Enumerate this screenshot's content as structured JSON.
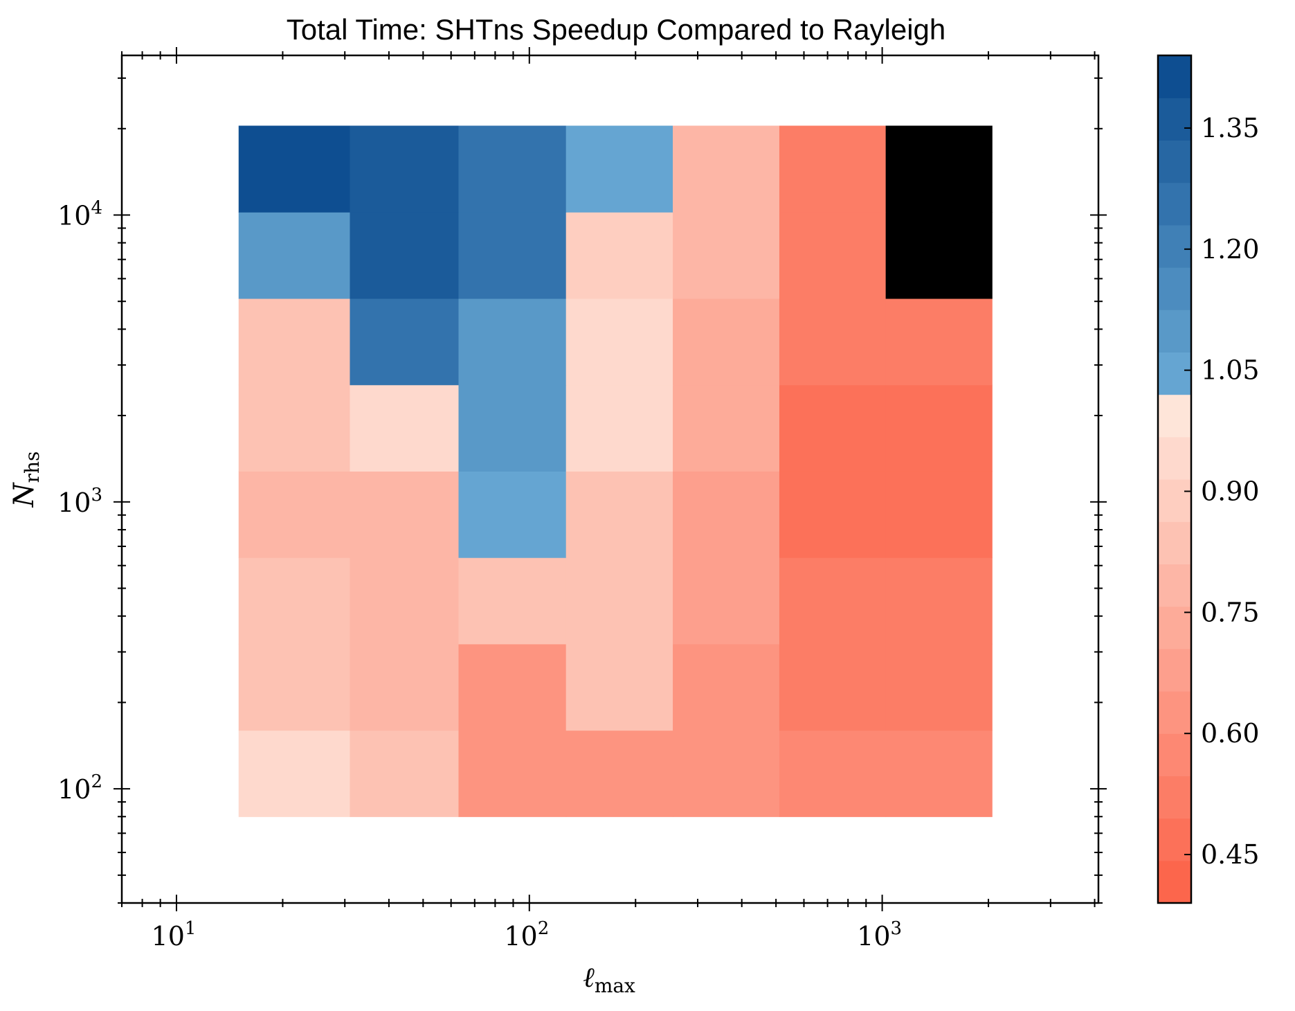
{
  "chart_data": {
    "type": "heatmap",
    "title": "Total Time: SHTns Speedup Compared to Rayleigh",
    "xlabel": {
      "main": "ℓ",
      "sub": "max"
    },
    "ylabel": {
      "main": "N",
      "sub": "rhs"
    },
    "x_scale": "log",
    "y_scale": "log",
    "xlim": [
      7,
      4100
    ],
    "ylim": [
      40,
      36000
    ],
    "x_ticks": [
      {
        "base": "10",
        "exp": "1",
        "value": 10
      },
      {
        "base": "10",
        "exp": "2",
        "value": 100
      },
      {
        "base": "10",
        "exp": "3",
        "value": 1000
      }
    ],
    "y_ticks": [
      {
        "base": "10",
        "exp": "2",
        "value": 100
      },
      {
        "base": "10",
        "exp": "3",
        "value": 1000
      },
      {
        "base": "10",
        "exp": "4",
        "value": 10000
      }
    ],
    "x_edges": [
      15,
      31,
      63,
      127,
      255,
      511,
      1023,
      2047
    ],
    "y_edges": [
      80,
      160,
      320,
      640,
      1280,
      2560,
      5120,
      10240,
      20480
    ],
    "grid": false,
    "values": [
      [
        0.94,
        0.82,
        0.62,
        0.62,
        0.62,
        0.58,
        0.56
      ],
      [
        0.86,
        0.78,
        0.62,
        0.82,
        0.64,
        0.54,
        0.5
      ],
      [
        0.86,
        0.78,
        0.82,
        0.82,
        0.7,
        0.54,
        0.5
      ],
      [
        0.8,
        0.76,
        1.03,
        0.82,
        0.7,
        0.48,
        0.48
      ],
      [
        0.86,
        0.94,
        1.08,
        0.95,
        0.72,
        0.48,
        0.48
      ],
      [
        0.86,
        1.25,
        1.08,
        0.95,
        0.72,
        0.54,
        0.5
      ],
      [
        1.08,
        1.34,
        1.25,
        0.9,
        0.76,
        0.54,
        null
      ],
      [
        1.41,
        1.34,
        1.25,
        1.03,
        0.76,
        0.54,
        null
      ]
    ],
    "colorbar": {
      "vmin": 0.39,
      "vmax": 1.44,
      "ticks": [
        "0.45",
        "0.60",
        "0.75",
        "0.90",
        "1.05",
        "1.20",
        "1.35"
      ],
      "levels": 20,
      "bad_color": "#000000"
    }
  }
}
